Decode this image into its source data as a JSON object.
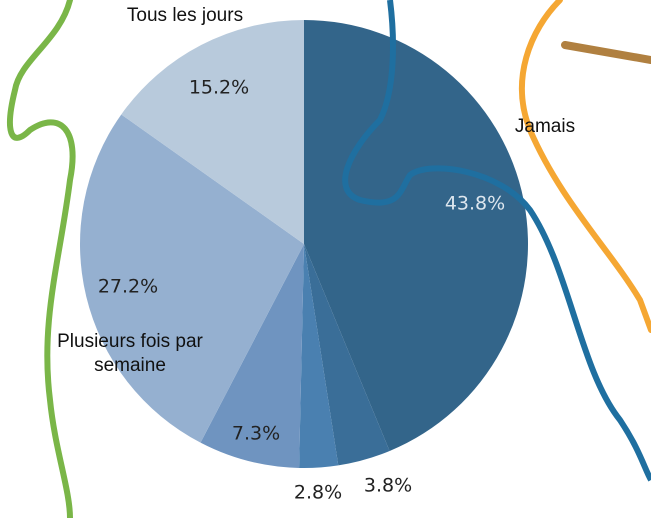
{
  "chart_data": {
    "type": "pie",
    "categories": [
      "Jamais",
      null,
      null,
      null,
      "Plusieurs fois par semaine",
      "Tous les jours"
    ],
    "values": [
      43.8,
      3.8,
      2.8,
      7.3,
      27.2,
      15.2
    ],
    "value_labels": [
      "43.8%",
      "3.8%",
      "2.8%",
      "7.3%",
      "27.2%",
      "15.2%"
    ],
    "colors": [
      "#33658a",
      "#3a6e98",
      "#4a80b0",
      "#6f94c0",
      "#95b0d0",
      "#b8cadc"
    ]
  }
}
